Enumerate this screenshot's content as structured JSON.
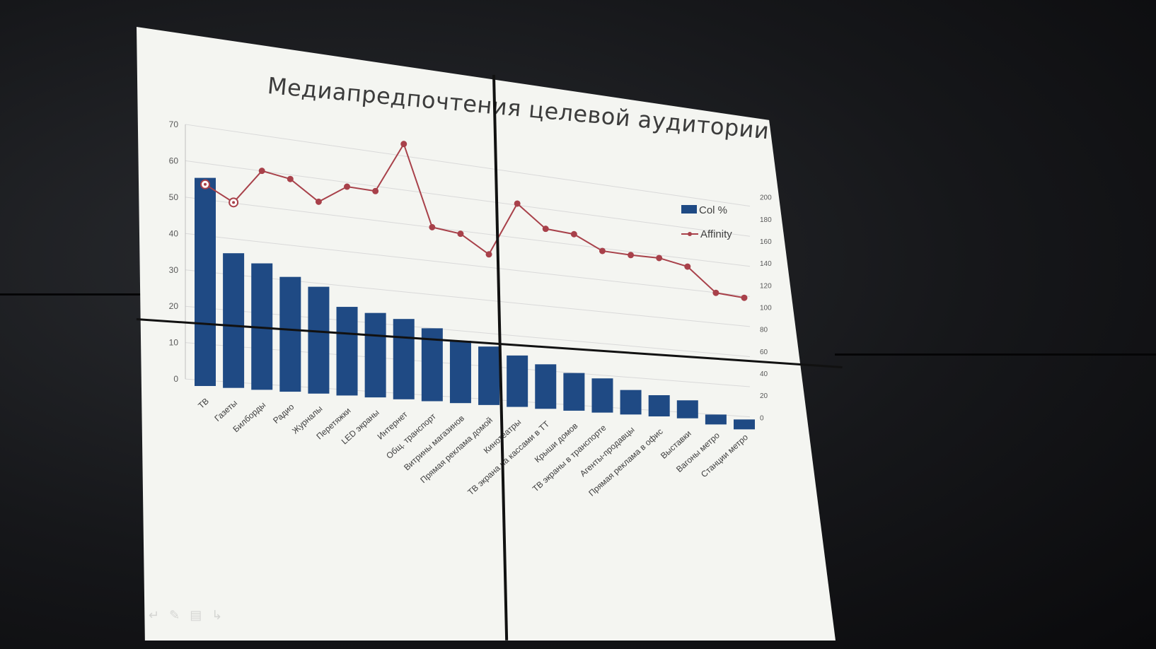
{
  "slide": {
    "title": "Медиапредпочтения целевой аудитории"
  },
  "colors": {
    "bar": "#1f4a84",
    "line": "#a8414a",
    "grid": "#d9d9d9",
    "axis_text": "#595959"
  },
  "toolbar": {
    "icons": [
      "back-arrow-icon",
      "pen-icon",
      "slides-icon",
      "forward-arrow-icon"
    ]
  },
  "chart_data": {
    "type": "bar",
    "title": "Медиапредпочтения целевой аудитории",
    "categories": [
      "ТВ",
      "Газеты",
      "Билборды",
      "Радио",
      "Журналы",
      "Перетяжки",
      "LED экраны",
      "Интернет",
      "Общ. транспорт",
      "Витрины магазинов",
      "Прямая реклама домой",
      "Кинотеатры",
      "ТВ экрана на кассами в ТТ",
      "Крыши домов",
      "ТВ экраны в транспорте",
      "Агенты-продавцы",
      "Прямая реклама в офис",
      "Выставки",
      "Вагоны метро",
      "Станции метро"
    ],
    "series": [
      {
        "name": "Col %",
        "axis": "left",
        "type": "bar",
        "values": [
          56,
          36,
          34,
          31,
          29,
          24,
          23,
          22,
          20,
          17,
          16,
          14,
          12,
          10,
          9,
          6,
          5,
          4,
          0,
          -1
        ]
      },
      {
        "name": "Affinity",
        "axis": "right",
        "type": "line",
        "values": [
          157,
          145,
          173,
          169,
          153,
          168,
          167,
          209,
          142,
          139,
          124,
          170,
          151,
          149,
          137,
          136,
          136,
          131,
          110,
          108
        ]
      }
    ],
    "y_left": {
      "ticks": [
        0,
        10,
        20,
        30,
        40,
        50,
        60,
        70
      ],
      "ylim": [
        0,
        70
      ]
    },
    "y_right": {
      "ticks": [
        0,
        20,
        40,
        60,
        80,
        100,
        120,
        140,
        160,
        180,
        200
      ],
      "ylim": [
        0,
        200
      ]
    },
    "legend": {
      "placement": "right",
      "entries": [
        "Col %",
        "Affinity"
      ]
    },
    "grid": true
  }
}
